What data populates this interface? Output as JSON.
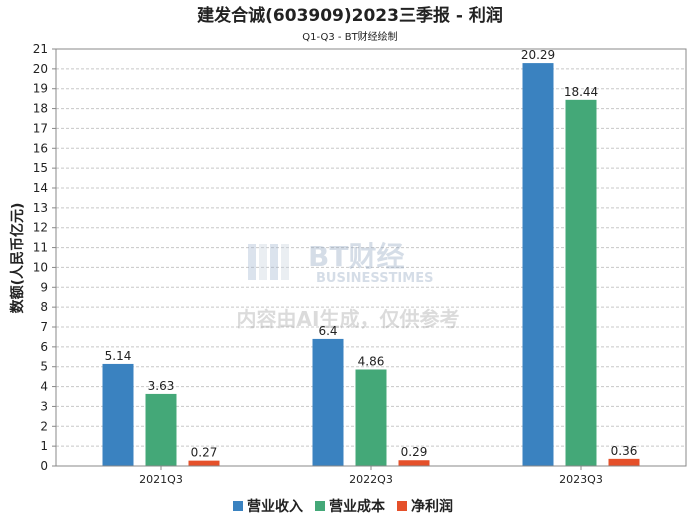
{
  "chart_data": {
    "type": "bar",
    "title": "建发合诚(603909)2023三季报 - 利润",
    "subtitle": "Q1-Q3 - BT财经绘制",
    "ylabel": "数额(人民币亿元)",
    "xlabel": "",
    "ylim": [
      0,
      21
    ],
    "yticks": [
      0,
      1,
      2,
      3,
      4,
      5,
      6,
      7,
      8,
      9,
      10,
      11,
      12,
      13,
      14,
      15,
      16,
      17,
      18,
      19,
      20,
      21
    ],
    "categories": [
      "2021Q3",
      "2022Q3",
      "2023Q3"
    ],
    "series": [
      {
        "name": "营业收入",
        "color": "#3a82c0",
        "values": [
          5.14,
          6.4,
          20.29
        ],
        "labels": [
          "5.14",
          "6.4",
          "20.29"
        ]
      },
      {
        "name": "营业成本",
        "color": "#44a878",
        "values": [
          3.63,
          4.86,
          18.44
        ],
        "labels": [
          "3.63",
          "4.86",
          "18.44"
        ]
      },
      {
        "name": "净利润",
        "color": "#e5502a",
        "values": [
          0.27,
          0.29,
          0.36
        ],
        "labels": [
          "0.27",
          "0.29",
          "0.36"
        ]
      }
    ],
    "grid": true,
    "legend": "bottom-center"
  },
  "watermark": {
    "brand": "BT财经",
    "brand_sub": "BUSINESSTIMES",
    "notice": "内容由AI生成，仅供参考"
  }
}
